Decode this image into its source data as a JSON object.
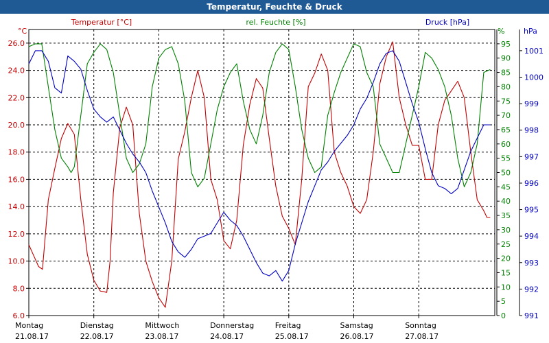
{
  "chart_data": {
    "type": "line",
    "title": "Temperatur, Feuchte & Druck",
    "axes": {
      "left": {
        "label": "Temperatur [°C]",
        "unit": "°C",
        "min": 6,
        "max": 27,
        "ticks": [
          6,
          8,
          10,
          12,
          14,
          16,
          18,
          20,
          22,
          24,
          26
        ],
        "decimals": 1,
        "color": "#c00000"
      },
      "right1": {
        "label": "rel. Feuchte [%]",
        "unit": "%",
        "min": 0,
        "max": 100,
        "ticks": [
          0,
          5,
          10,
          15,
          20,
          25,
          30,
          35,
          40,
          45,
          50,
          55,
          60,
          65,
          70,
          75,
          80,
          85,
          90,
          95
        ],
        "decimals": 0,
        "color": "#008000"
      },
      "right2": {
        "label": "Druck [hPa]",
        "unit": "hPa",
        "min": 991,
        "max": 1001.8,
        "ticks": [
          991,
          992,
          993,
          994,
          995,
          996,
          997,
          998,
          999,
          1000,
          1001
        ],
        "decimals": 0,
        "color": "#0000c0"
      }
    },
    "x": {
      "min": 0,
      "max": 7.17,
      "ticks": [
        {
          "pos": 0,
          "day": "Montag",
          "date": "21.08.17"
        },
        {
          "pos": 1,
          "day": "Dienstag",
          "date": "22.08.17"
        },
        {
          "pos": 2,
          "day": "Mittwoch",
          "date": "23.08.17"
        },
        {
          "pos": 3,
          "day": "Donnerstag",
          "date": "24.08.17"
        },
        {
          "pos": 4,
          "day": "Freitag",
          "date": "25.08.17"
        },
        {
          "pos": 5,
          "day": "Samstag",
          "date": "26.08.17"
        },
        {
          "pos": 6,
          "day": "Sonntag",
          "date": "27.08.17"
        }
      ]
    },
    "grid": true,
    "series": [
      {
        "name": "Temperatur [°C]",
        "axis": "left",
        "color": "#c00000",
        "x": [
          0,
          0.15,
          0.21,
          0.3,
          0.4,
          0.5,
          0.6,
          0.7,
          0.8,
          0.9,
          1.0,
          1.1,
          1.2,
          1.25,
          1.3,
          1.4,
          1.5,
          1.6,
          1.7,
          1.8,
          1.9,
          2.0,
          2.1,
          2.2,
          2.3,
          2.4,
          2.5,
          2.6,
          2.7,
          2.8,
          2.9,
          3.0,
          3.1,
          3.2,
          3.3,
          3.4,
          3.5,
          3.6,
          3.7,
          3.8,
          3.9,
          4.0,
          4.1,
          4.2,
          4.3,
          4.4,
          4.5,
          4.6,
          4.7,
          4.8,
          4.9,
          5.0,
          5.1,
          5.2,
          5.3,
          5.4,
          5.5,
          5.6,
          5.7,
          5.8,
          5.9,
          6.0,
          6.1,
          6.2,
          6.3,
          6.4,
          6.5,
          6.6,
          6.7,
          6.8,
          6.9,
          7.0,
          7.05,
          7.1
        ],
        "values": [
          11.2,
          9.6,
          9.4,
          14.5,
          16.8,
          19.0,
          20.1,
          19.3,
          14.5,
          10.5,
          8.6,
          7.8,
          7.7,
          10.0,
          15.0,
          19.8,
          21.3,
          20.0,
          13.5,
          10.0,
          8.5,
          7.3,
          6.6,
          10.0,
          17.5,
          19.5,
          22.0,
          24.0,
          22.0,
          16.0,
          14.5,
          11.5,
          10.9,
          13.0,
          18.5,
          21.5,
          23.4,
          22.7,
          19.0,
          15.5,
          13.3,
          12.4,
          11.2,
          16.0,
          22.8,
          23.8,
          25.2,
          24.0,
          18.0,
          16.5,
          15.5,
          14.0,
          13.5,
          14.5,
          18.0,
          23.0,
          25.0,
          26.1,
          22.0,
          20.0,
          18.5,
          18.5,
          16.0,
          16.0,
          20.0,
          21.8,
          22.5,
          23.2,
          22.0,
          18.0,
          14.5,
          13.7,
          13.2,
          13.2
        ]
      },
      {
        "name": "rel. Feuchte [%]",
        "axis": "right1",
        "color": "#008000",
        "x": [
          0,
          0.1,
          0.2,
          0.3,
          0.4,
          0.5,
          0.6,
          0.65,
          0.7,
          0.8,
          0.9,
          1.0,
          1.1,
          1.2,
          1.3,
          1.4,
          1.5,
          1.6,
          1.7,
          1.8,
          1.9,
          2.0,
          2.1,
          2.2,
          2.3,
          2.4,
          2.5,
          2.6,
          2.7,
          2.8,
          2.9,
          3.0,
          3.1,
          3.2,
          3.3,
          3.4,
          3.5,
          3.6,
          3.7,
          3.8,
          3.9,
          4.0,
          4.1,
          4.2,
          4.3,
          4.4,
          4.5,
          4.6,
          4.7,
          4.8,
          4.9,
          5.0,
          5.1,
          5.2,
          5.3,
          5.4,
          5.5,
          5.6,
          5.7,
          5.8,
          5.9,
          6.0,
          6.1,
          6.2,
          6.3,
          6.4,
          6.5,
          6.6,
          6.7,
          6.8,
          6.9,
          7.0,
          7.1
        ],
        "values": [
          94,
          95,
          95,
          80,
          65,
          55,
          52,
          50,
          52,
          70,
          88,
          92,
          95,
          93,
          85,
          70,
          55,
          50,
          53,
          60,
          80,
          90,
          93,
          94,
          88,
          75,
          50,
          45,
          48,
          60,
          72,
          80,
          85,
          88,
          75,
          65,
          60,
          70,
          85,
          92,
          95,
          93,
          80,
          65,
          55,
          50,
          52,
          70,
          78,
          85,
          90,
          95,
          94,
          85,
          80,
          60,
          55,
          50,
          50,
          60,
          70,
          80,
          92,
          90,
          86,
          80,
          70,
          55,
          45,
          50,
          60,
          85,
          86
        ]
      },
      {
        "name": "Druck [hPa]",
        "axis": "right2",
        "color": "#0000c0",
        "x": [
          0,
          0.1,
          0.2,
          0.3,
          0.4,
          0.5,
          0.6,
          0.7,
          0.8,
          0.9,
          1.0,
          1.1,
          1.2,
          1.3,
          1.4,
          1.5,
          1.6,
          1.7,
          1.8,
          1.9,
          2.0,
          2.1,
          2.2,
          2.3,
          2.4,
          2.5,
          2.6,
          2.7,
          2.8,
          2.9,
          3.0,
          3.1,
          3.2,
          3.3,
          3.4,
          3.5,
          3.6,
          3.7,
          3.8,
          3.9,
          4.0,
          4.1,
          4.2,
          4.3,
          4.4,
          4.5,
          4.6,
          4.7,
          4.8,
          4.9,
          5.0,
          5.1,
          5.2,
          5.3,
          5.4,
          5.5,
          5.6,
          5.7,
          5.8,
          5.9,
          6.0,
          6.1,
          6.2,
          6.3,
          6.4,
          6.5,
          6.6,
          6.7,
          6.8,
          6.9,
          7.0,
          7.1
        ],
        "values": [
          1000.5,
          1001.0,
          1001.0,
          1000.6,
          999.6,
          999.4,
          1000.8,
          1000.6,
          1000.3,
          999.5,
          998.8,
          998.5,
          998.3,
          998.5,
          998.0,
          997.5,
          997.1,
          996.8,
          996.4,
          995.7,
          995.1,
          994.5,
          993.8,
          993.4,
          993.2,
          993.5,
          993.9,
          994.0,
          994.1,
          994.5,
          994.9,
          994.6,
          994.4,
          994.0,
          993.5,
          993.0,
          992.6,
          992.5,
          992.7,
          992.3,
          992.7,
          993.7,
          994.5,
          995.3,
          995.9,
          996.5,
          996.8,
          997.2,
          997.5,
          997.8,
          998.2,
          998.8,
          999.2,
          999.8,
          1000.5,
          1000.9,
          1001.0,
          1000.6,
          999.8,
          999.0,
          998.3,
          997.3,
          996.4,
          995.9,
          995.8,
          995.6,
          995.8,
          996.5,
          997.2,
          997.7,
          998.2,
          998.2
        ]
      }
    ]
  }
}
